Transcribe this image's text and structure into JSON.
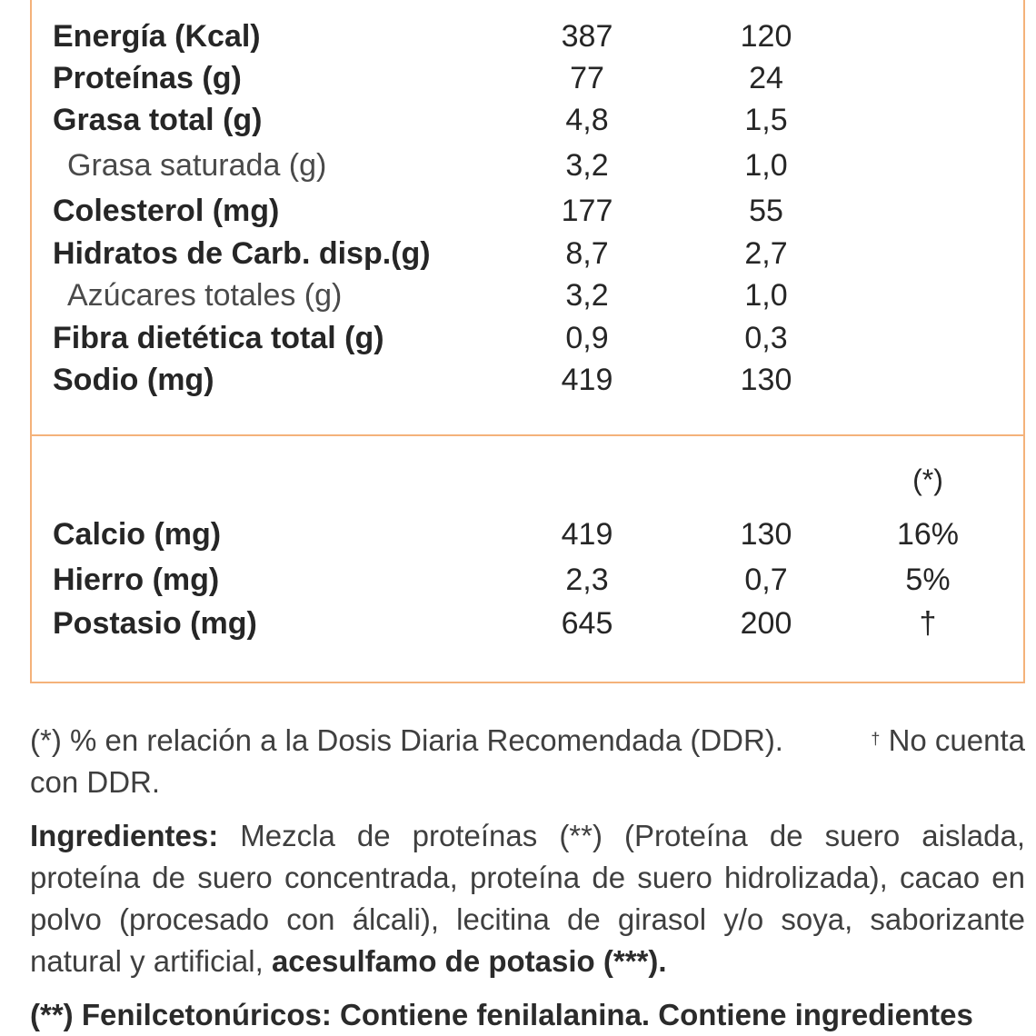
{
  "table": {
    "macro_rows": [
      {
        "label": "Energía (Kcal)",
        "v1": "387",
        "v2": "120",
        "bold": true
      },
      {
        "label": "Proteínas (g)",
        "v1": "77",
        "v2": "24",
        "bold": true
      },
      {
        "label": "Grasa total (g)",
        "v1": "4,8",
        "v2": "1,5",
        "bold": true
      },
      {
        "label": "Grasa saturada (g)",
        "v1": "3,2",
        "v2": "1,0",
        "bold": false
      },
      {
        "label": "Colesterol (mg)",
        "v1": "177",
        "v2": "55",
        "bold": true
      },
      {
        "label": "Hidratos de Carb. disp.(g)",
        "v1": "8,7",
        "v2": "2,7",
        "bold": true
      },
      {
        "label": "Azúcares totales (g)",
        "v1": "3,2",
        "v2": "1,0",
        "bold": false
      },
      {
        "label": "Fibra dietética total (g)",
        "v1": "0,9",
        "v2": "0,3",
        "bold": true
      },
      {
        "label": "Sodio (mg)",
        "v1": "419",
        "v2": "130",
        "bold": true
      }
    ],
    "mineral_header": "(*)",
    "mineral_rows": [
      {
        "label": "Calcio (mg)",
        "v1": "419",
        "v2": "130",
        "v3": "16%"
      },
      {
        "label": "Hierro (mg)",
        "v1": "2,3",
        "v2": "0,7",
        "v3": "5%"
      },
      {
        "label": "Postasio (mg)",
        "v1": "645",
        "v2": "200",
        "v3": "†"
      }
    ]
  },
  "footnotes": {
    "ddr_line1": "(*) % en relación a la Dosis Diaria Recomendada (DDR).",
    "dagger": "†",
    "ddr_line1_end": "No cuenta",
    "ddr_line2": "con DDR.",
    "ingredients_label": "Ingredientes:",
    "ingredients_text": "Mezcla de proteínas (**) (Proteína de suero aislada, proteína de suero concentrada, proteína de suero hidrolizada), cacao en polvo (procesado con álcali), lecitina de girasol y/o soya, saborizante natural y artificial,",
    "ingredients_bold_end": "acesulfamo de potasio (***).",
    "pku_text": "(**) Fenilcetonúricos: Contiene fenilalanina. Contiene ingredientes"
  },
  "colors": {
    "border": "#f4b27a",
    "text": "#262626"
  }
}
